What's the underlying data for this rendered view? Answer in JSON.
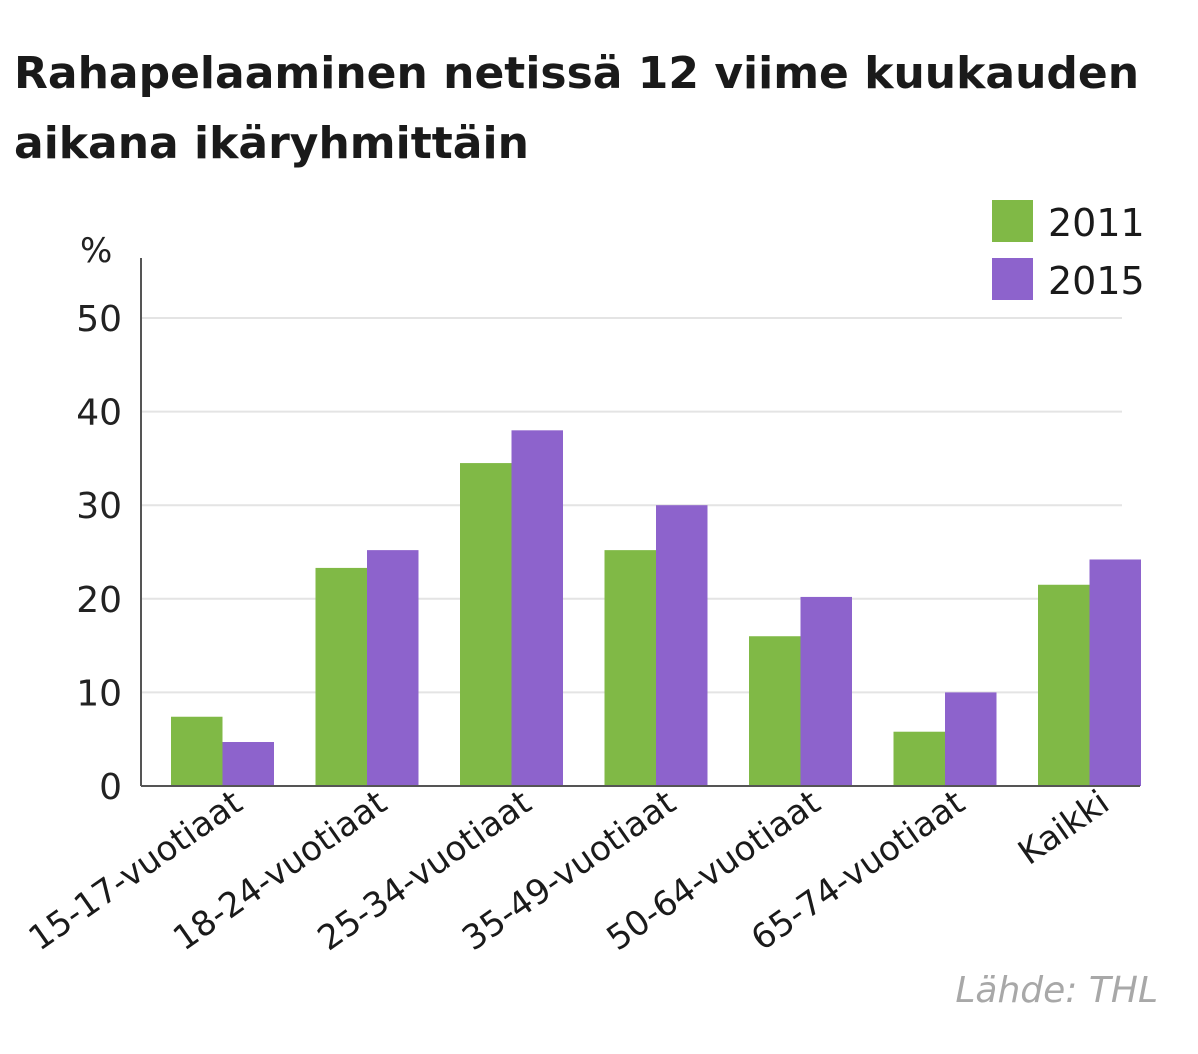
{
  "chart_data": {
    "type": "bar",
    "title_lines": [
      "Rahapelaaminen netissä 12 viime kuukauden",
      "aikana ikäryhmittäin"
    ],
    "ylabel": "%",
    "ylim": [
      0,
      55
    ],
    "yticks": [
      0,
      10,
      20,
      30,
      40,
      50
    ],
    "grid": true,
    "legend_position": "top-right",
    "categories": [
      "15-17-vuotiaat",
      "18-24-vuotiaat",
      "25-34-vuotiaat",
      "35-49-vuotiaat",
      "50-64-vuotiaat",
      "65-74-vuotiaat",
      "Kaikki"
    ],
    "series": [
      {
        "name": "2011",
        "color": "#80b946",
        "values": [
          7.4,
          23.3,
          34.5,
          25.2,
          16.0,
          5.8,
          21.5
        ]
      },
      {
        "name": "2015",
        "color": "#8d63cc",
        "values": [
          4.7,
          25.2,
          38.0,
          30.0,
          20.2,
          10.0,
          24.2
        ]
      }
    ],
    "source": "Lähde: THL"
  }
}
